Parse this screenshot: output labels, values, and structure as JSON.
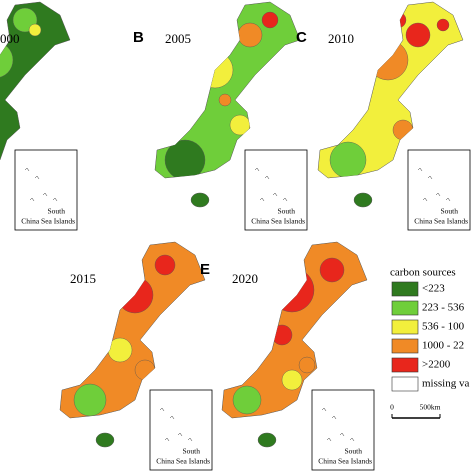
{
  "panels": [
    {
      "year": "000"
    },
    {
      "letter": "B",
      "year": "2005"
    },
    {
      "letter": "C",
      "year": "2010"
    },
    {
      "year": "2015"
    },
    {
      "letter": "E",
      "year": "2020"
    }
  ],
  "inset": {
    "line1": "South",
    "line2": "China Sea Islands"
  },
  "legend": {
    "title": "carbon sources",
    "items": [
      "<223",
      "223 - 536",
      "536 - 100",
      "1000 - 22",
      ">2200",
      "missing va"
    ]
  },
  "scale": {
    "start": "0",
    "end": "500km"
  }
}
